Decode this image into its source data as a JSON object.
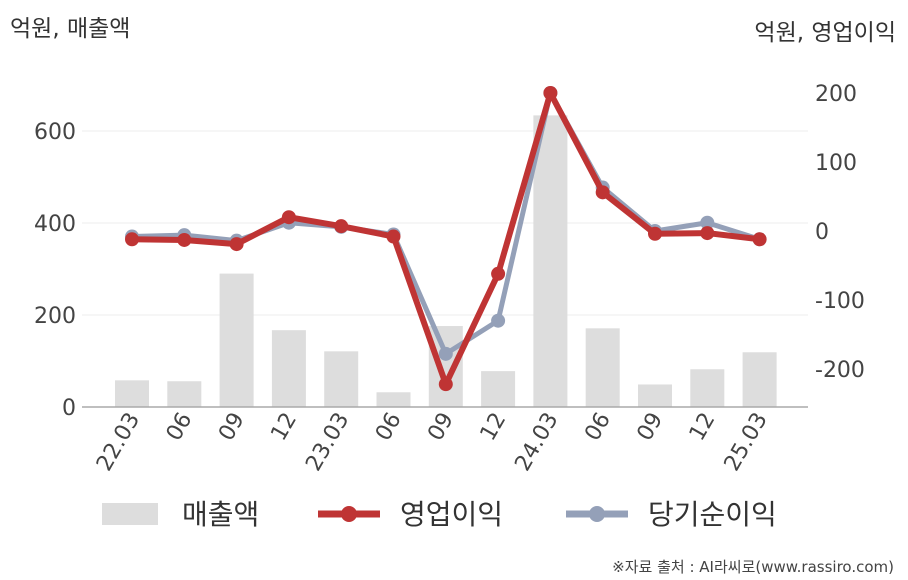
{
  "chart_data": {
    "type": "bar+line",
    "categories": [
      "22.03",
      "06",
      "09",
      "12",
      "23.03",
      "06",
      "09",
      "12",
      "24.03",
      "06",
      "09",
      "12",
      "25.03"
    ],
    "left_axis": {
      "title": "억원, 매출액",
      "ticks": [
        "0",
        "200",
        "400",
        "600"
      ],
      "range": [
        0,
        700
      ]
    },
    "right_axis": {
      "title": "억원, 영업이익",
      "ticks": [
        "-200",
        "-100",
        "0",
        "100",
        "200"
      ],
      "range": [
        -255,
        200
      ]
    },
    "bars": {
      "name": "매출액",
      "color": "#dddddd",
      "values": [
        58,
        56,
        290,
        167,
        121,
        32,
        176,
        78,
        634,
        171,
        49,
        82,
        119
      ]
    },
    "series": [
      {
        "name": "당기순이익",
        "color": "#94a0b8",
        "axis": "right",
        "values": [
          -8,
          -6,
          -14,
          12,
          6,
          -5,
          -178,
          -130,
          200,
          63,
          0,
          12,
          -12
        ]
      },
      {
        "name": "영업이익",
        "color": "#bf3434",
        "axis": "right",
        "values": [
          -12,
          -13,
          -19,
          20,
          7,
          -8,
          -222,
          -62,
          200,
          56,
          -4,
          -3,
          -12
        ]
      }
    ],
    "grid": true,
    "legend": "bottom",
    "source": "※자료 출처 : AI라씨로(www.rassiro.com)"
  }
}
